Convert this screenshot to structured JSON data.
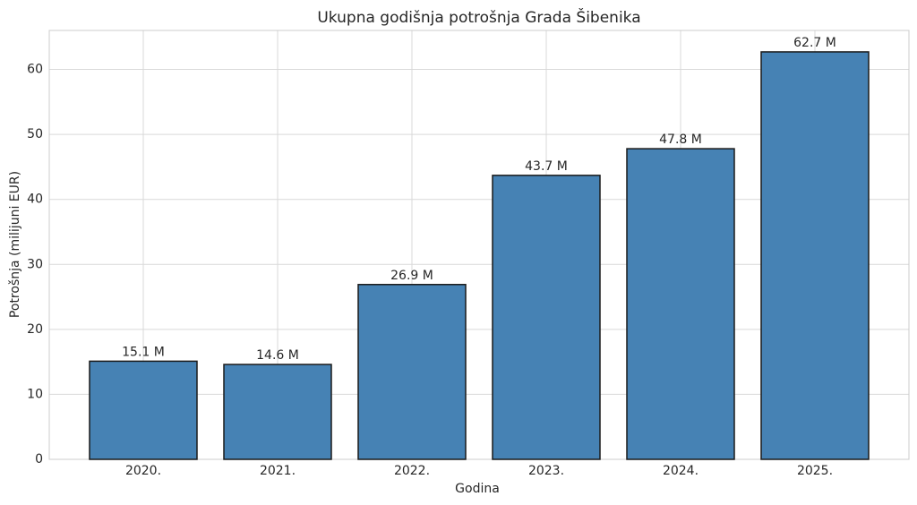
{
  "chart_data": {
    "type": "bar",
    "title": "Ukupna godišnja potrošnja Grada Šibenika",
    "x_label": "Godina",
    "y_label": "Potrošnja (milijuni EUR)",
    "categories": [
      "2020.",
      "2021.",
      "2022.",
      "2023.",
      "2024.",
      "2025."
    ],
    "values": [
      15.1,
      14.6,
      26.9,
      43.7,
      47.8,
      62.7
    ],
    "value_labels": [
      "15.1 M",
      "14.6 M",
      "26.9 M",
      "43.7 M",
      "47.8 M",
      "62.7 M"
    ],
    "color": "#4682b4",
    "edge_color": "#1a1a1a",
    "ylim": [
      0,
      66
    ],
    "yticks": [
      0,
      10,
      20,
      30,
      40,
      50,
      60
    ],
    "grid": true
  }
}
